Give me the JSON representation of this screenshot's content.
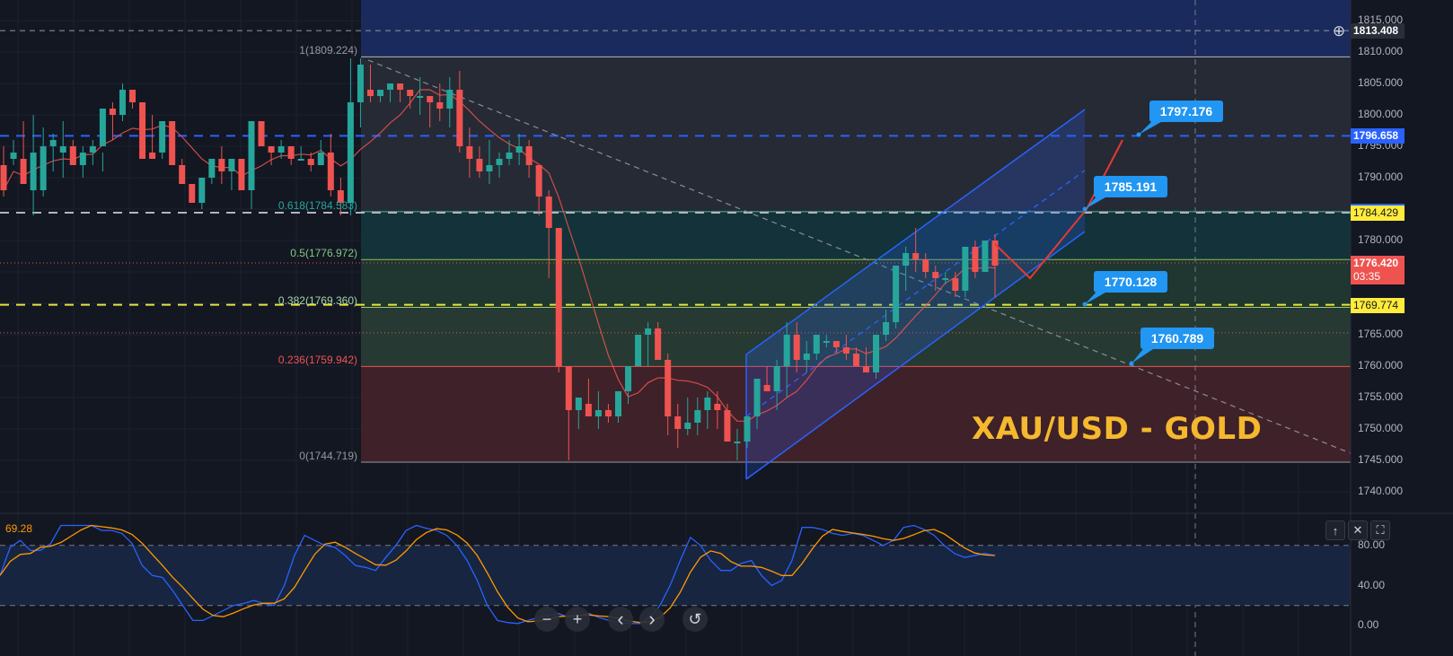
{
  "chart_data": {
    "type": "candlestick",
    "title": "XAU/USD - GOLD",
    "symbol": "XAU/USD",
    "price_axis": {
      "ticks": [
        "1815.000",
        "1810.000",
        "1805.000",
        "1800.000",
        "1795.000",
        "1790.000",
        "1780.000",
        "1775.000",
        "1765.000",
        "1760.000",
        "1755.000",
        "1750.000",
        "1745.000",
        "1740.000"
      ],
      "range": [
        1738,
        1816
      ]
    },
    "price_tags": [
      {
        "value": "1813.408",
        "color": "#2a2e39",
        "role": "crosshair"
      },
      {
        "value": "1796.658",
        "color": "#2962ff",
        "role": "horizontal-line"
      },
      {
        "value": "1784.644",
        "color": "#2962ff",
        "role": "channel"
      },
      {
        "value": "1784.429",
        "color": "#ffeb3b",
        "role": "horizontal-line"
      },
      {
        "value": "1776.420",
        "countdown": "03:35",
        "color": "#ef5350",
        "role": "last-price"
      },
      {
        "value": "1769.774",
        "color": "#ffeb3b",
        "role": "horizontal-line"
      }
    ],
    "fibonacci": [
      {
        "level": "1",
        "price": "1809.224",
        "label": "1(1809.224)"
      },
      {
        "level": "0.618",
        "price": "1784.583",
        "label": "0.618(1784.583)"
      },
      {
        "level": "0.5",
        "price": "1776.972",
        "label": "0.5(1776.972)"
      },
      {
        "level": "0.382",
        "price": "1769.360",
        "label": "0.382(1769.360)"
      },
      {
        "level": "0.236",
        "price": "1759.942",
        "label": "0.236(1759.942)"
      },
      {
        "level": "0",
        "price": "1744.719",
        "label": "0(1744.719)"
      }
    ],
    "callouts": [
      "1797.176",
      "1785.191",
      "1770.128",
      "1760.789"
    ],
    "candles": [
      [
        1792,
        1795,
        1787,
        1788
      ],
      [
        1793,
        1796,
        1792,
        1794
      ],
      [
        1793,
        1799,
        1791,
        1789
      ],
      [
        1788,
        1800,
        1784,
        1794
      ],
      [
        1788,
        1798,
        1787,
        1795
      ],
      [
        1795,
        1797,
        1791,
        1796
      ],
      [
        1794,
        1799,
        1790,
        1795
      ],
      [
        1795,
        1796,
        1794,
        1792
      ],
      [
        1792,
        1795,
        1790,
        1794
      ],
      [
        1794,
        1796,
        1792,
        1795
      ],
      [
        1795,
        1794,
        1791,
        1801
      ],
      [
        1801,
        1802,
        1796,
        1800
      ],
      [
        1800,
        1805,
        1799,
        1804
      ],
      [
        1804,
        1804,
        1801,
        1802
      ],
      [
        1802,
        1802,
        1794,
        1793
      ],
      [
        1794,
        1800,
        1793,
        1793
      ],
      [
        1794,
        1799,
        1793,
        1799
      ],
      [
        1799,
        1799,
        1792,
        1792
      ],
      [
        1792,
        1793,
        1791,
        1789
      ],
      [
        1789,
        1789,
        1787,
        1786
      ],
      [
        1786,
        1790,
        1785,
        1790
      ],
      [
        1790,
        1792,
        1789,
        1793
      ],
      [
        1793,
        1795,
        1789,
        1791
      ],
      [
        1791,
        1791,
        1788,
        1793
      ],
      [
        1793,
        1793,
        1789,
        1788
      ],
      [
        1788,
        1799,
        1785,
        1799
      ],
      [
        1799,
        1799,
        1795,
        1795
      ],
      [
        1795,
        1795,
        1792,
        1794
      ],
      [
        1794,
        1796,
        1793,
        1795
      ],
      [
        1795,
        1795,
        1792,
        1793
      ],
      [
        1793,
        1795,
        1793,
        1793
      ],
      [
        1793,
        1794,
        1791,
        1792
      ],
      [
        1792,
        1796,
        1792,
        1794
      ],
      [
        1794,
        1797,
        1787,
        1788
      ],
      [
        1788,
        1790,
        1784,
        1786
      ],
      [
        1786,
        1809,
        1784,
        1802
      ],
      [
        1802,
        1809,
        1798,
        1808
      ],
      [
        1804,
        1808,
        1802,
        1803
      ],
      [
        1803,
        1803,
        1802,
        1804
      ],
      [
        1804,
        1805,
        1802,
        1805
      ],
      [
        1805,
        1804,
        1802,
        1804
      ],
      [
        1804,
        1804,
        1801,
        1803
      ],
      [
        1803,
        1806,
        1800,
        1803
      ],
      [
        1803,
        1803,
        1798,
        1802
      ],
      [
        1802,
        1805,
        1799,
        1801
      ],
      [
        1801,
        1806,
        1798,
        1804
      ],
      [
        1804,
        1807,
        1794,
        1795
      ],
      [
        1795,
        1798,
        1790,
        1793
      ],
      [
        1793,
        1795,
        1790,
        1791
      ],
      [
        1791,
        1796,
        1789,
        1792
      ],
      [
        1792,
        1794,
        1790,
        1793
      ],
      [
        1793,
        1796,
        1792,
        1794
      ],
      [
        1794,
        1797,
        1792,
        1795
      ],
      [
        1795,
        1796,
        1790,
        1792
      ],
      [
        1792,
        1790,
        1784,
        1787
      ],
      [
        1787,
        1788,
        1774,
        1782
      ],
      [
        1782,
        1782,
        1759,
        1760
      ],
      [
        1760,
        1760,
        1745,
        1753
      ],
      [
        1753,
        1755,
        1750,
        1755
      ],
      [
        1754,
        1758,
        1753,
        1752
      ],
      [
        1752,
        1756,
        1750,
        1753
      ],
      [
        1753,
        1754,
        1751,
        1752
      ],
      [
        1752,
        1756,
        1751,
        1756
      ],
      [
        1756,
        1759,
        1754,
        1760
      ],
      [
        1760,
        1765,
        1760,
        1765
      ],
      [
        1765,
        1767,
        1760,
        1766
      ],
      [
        1766,
        1767,
        1764,
        1761
      ],
      [
        1761,
        1762,
        1749,
        1752
      ],
      [
        1752,
        1754,
        1747,
        1750
      ],
      [
        1750,
        1755,
        1749,
        1751
      ],
      [
        1751,
        1755,
        1749,
        1753
      ],
      [
        1753,
        1756,
        1750,
        1755
      ],
      [
        1754,
        1756,
        1750,
        1753
      ],
      [
        1753,
        1754,
        1748,
        1748
      ],
      [
        1748,
        1750,
        1745,
        1748
      ],
      [
        1748,
        1751,
        1747,
        1752
      ],
      [
        1752,
        1757,
        1750,
        1758
      ],
      [
        1757,
        1760,
        1757,
        1756
      ],
      [
        1756,
        1761,
        1753,
        1760
      ],
      [
        1760,
        1767,
        1755,
        1765
      ],
      [
        1765,
        1767,
        1759,
        1761
      ],
      [
        1761,
        1764,
        1759,
        1762
      ],
      [
        1762,
        1765,
        1761,
        1765
      ],
      [
        1764,
        1765,
        1763,
        1764
      ],
      [
        1764,
        1764,
        1762,
        1763
      ],
      [
        1763,
        1765,
        1761,
        1762
      ],
      [
        1762,
        1763,
        1760,
        1760
      ],
      [
        1760,
        1763,
        1759,
        1759
      ],
      [
        1759,
        1765,
        1758,
        1765
      ],
      [
        1765,
        1769,
        1764,
        1767
      ],
      [
        1767,
        1774,
        1766,
        1776
      ],
      [
        1776,
        1779,
        1772,
        1778
      ],
      [
        1778,
        1782,
        1775,
        1777
      ],
      [
        1777,
        1778,
        1774,
        1775
      ],
      [
        1775,
        1776,
        1772,
        1774
      ],
      [
        1774,
        1775,
        1773,
        1774
      ],
      [
        1774,
        1775,
        1771,
        1772
      ],
      [
        1772,
        1779,
        1771,
        1779
      ],
      [
        1779,
        1780,
        1774,
        1775
      ],
      [
        1775,
        1780,
        1775,
        1780
      ],
      [
        1780,
        1781,
        1771,
        1776
      ]
    ],
    "indicators": {
      "moving_average": {
        "color": "#ef5350"
      },
      "stochastic": {
        "value_label": "69.28",
        "k_color": "#2962ff",
        "d_color": "#ff9800",
        "levels": [
          "80.00",
          "40.00",
          "0.00"
        ],
        "upper_band": 80,
        "lower_band": 20
      }
    }
  },
  "overlay_title": "XAU/USD - GOLD",
  "indicator_pane": {
    "value": "69.28",
    "axis_ticks": [
      "80.00",
      "40.00",
      "0.00"
    ],
    "buttons": {
      "up": "↑",
      "close": "✕",
      "maximize": "⛶"
    }
  },
  "nav_controls": {
    "zoom_out": "−",
    "zoom_in": "+",
    "scroll_left": "‹",
    "scroll_right": "›",
    "reset": "↺"
  },
  "crosshair_add_icon": "⊕",
  "colors": {
    "bull": "#26a69a",
    "bear": "#ef5350",
    "background": "#131722",
    "channel": "#2962ff",
    "callout": "#2196f3",
    "title": "#f5b82e"
  }
}
